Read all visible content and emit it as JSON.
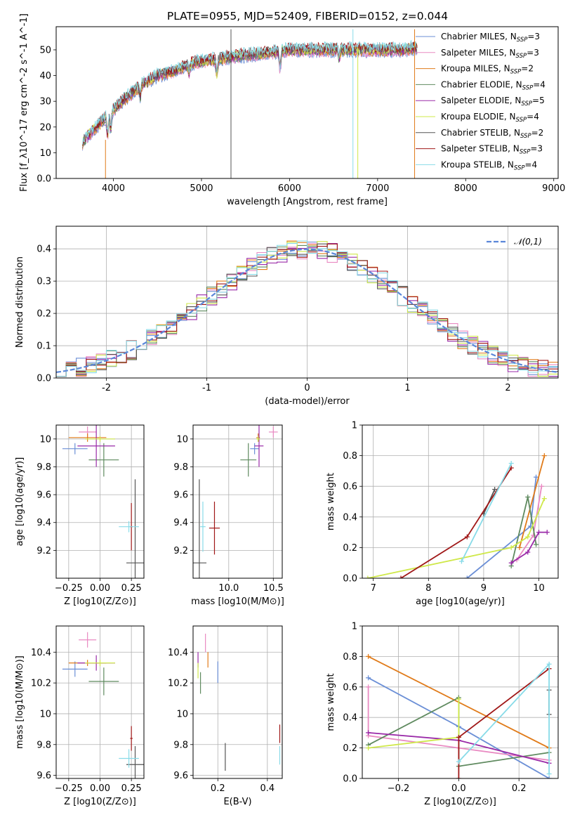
{
  "title": "PLATE=0955, MJD=52409, FIBERID=0152, z=0.044",
  "series_colors": {
    "Chabrier MILES": "#6b8fd6",
    "Salpeter MILES": "#e98ac2",
    "Kroupa MILES": "#e07b1a",
    "Chabrier ELODIE": "#5f8a5f",
    "Salpeter ELODIE": "#9a2aa8",
    "Kroupa ELODIE": "#cfe84a",
    "Chabrier STELIB": "#555555",
    "Salpeter STELIB": "#a01818",
    "Kroupa STELIB": "#88dbe8"
  },
  "chart_data": [
    {
      "type": "line",
      "id": "spectrum",
      "xlabel": "wavelength [Angstrom, rest frame]",
      "ylabel": "Flux [f_λ10^-17 erg cm^-2 s^-1 A^-1]",
      "xlim": [
        3350,
        9050
      ],
      "ylim": [
        0,
        59
      ],
      "xticks": [
        4000,
        5000,
        6000,
        7000,
        8000,
        9000
      ],
      "yticks": [
        0,
        10,
        20,
        30,
        40,
        50
      ],
      "grid": false,
      "legend_position": "top-right",
      "x_range_of_data": [
        3650,
        7450
      ],
      "legend": [
        {
          "name": "Chabrier MILES",
          "nssp": "3"
        },
        {
          "name": "Salpeter MILES",
          "nssp": "3"
        },
        {
          "name": "Kroupa MILES",
          "nssp": "2"
        },
        {
          "name": "Chabrier ELODIE",
          "nssp": "4"
        },
        {
          "name": "Salpeter ELODIE",
          "nssp": "5"
        },
        {
          "name": "Kroupa ELODIE",
          "nssp": "4"
        },
        {
          "name": "Chabrier STELIB",
          "nssp": "2"
        },
        {
          "name": "Salpeter STELIB",
          "nssp": "3"
        },
        {
          "name": "Kroupa STELIB",
          "nssp": "4"
        }
      ],
      "continuum_points": [
        [
          3650,
          14
        ],
        [
          3800,
          20
        ],
        [
          3950,
          25
        ],
        [
          4100,
          30
        ],
        [
          4300,
          36
        ],
        [
          4500,
          40
        ],
        [
          4700,
          42
        ],
        [
          4900,
          45
        ],
        [
          5100,
          46
        ],
        [
          5300,
          47
        ],
        [
          5500,
          48
        ],
        [
          5800,
          49
        ],
        [
          6000,
          50
        ],
        [
          6300,
          50
        ],
        [
          6600,
          50
        ],
        [
          6900,
          50
        ],
        [
          7100,
          50
        ],
        [
          7300,
          50
        ],
        [
          7450,
          51
        ]
      ],
      "absorption_features": [
        [
          3934,
          -8
        ],
        [
          3969,
          -7
        ],
        [
          4304,
          -5
        ],
        [
          4861,
          -3
        ],
        [
          5175,
          -6
        ],
        [
          5893,
          -7
        ],
        [
          6563,
          -3
        ]
      ],
      "emission_features": [
        [
          5335,
          58
        ],
        [
          6720,
          58
        ],
        [
          7420,
          58
        ]
      ]
    },
    {
      "type": "line",
      "id": "residual-histogram",
      "xlabel": "(data-model)/error",
      "ylabel": "Normed distribution",
      "xlim": [
        -2.5,
        2.5
      ],
      "ylim": [
        0,
        0.47
      ],
      "xticks": [
        -2,
        -1,
        0,
        1,
        2
      ],
      "yticks": [
        0.0,
        0.1,
        0.2,
        0.3,
        0.4
      ],
      "grid": true,
      "legend": [
        {
          "name": "𝒩(0,1)",
          "color": "#5b87d9",
          "style": "dashed"
        }
      ],
      "bins": 50,
      "description": "9 step histograms closely following the standard normal density"
    },
    {
      "type": "scatter",
      "id": "age-vs-Z",
      "xlabel": "Z [log10(Z/Z⊙)]",
      "ylabel": "age  [log10(age/yr)]",
      "xlim": [
        -0.35,
        0.35
      ],
      "ylim": [
        9.0,
        10.1
      ],
      "xticks": [
        -0.25,
        0.0,
        0.25
      ],
      "xtick_labels": [
        "−0.25",
        "0.00",
        "0.25"
      ],
      "yticks": [
        9.2,
        9.4,
        9.6,
        9.8,
        10.0
      ],
      "grid": true,
      "points": [
        {
          "series": "Chabrier MILES",
          "x": -0.2,
          "y": 9.93,
          "xerr": 0.1,
          "yerr": 0.04
        },
        {
          "series": "Salpeter MILES",
          "x": -0.1,
          "y": 10.05,
          "xerr": 0.07,
          "yerr": 0.04
        },
        {
          "series": "Kroupa MILES",
          "x": -0.1,
          "y": 10.01,
          "xerr": 0.15,
          "yerr": 0.03
        },
        {
          "series": "Chabrier ELODIE",
          "x": 0.03,
          "y": 9.85,
          "xerr": 0.12,
          "yerr": 0.12
        },
        {
          "series": "Salpeter ELODIE",
          "x": -0.03,
          "y": 9.95,
          "xerr": 0.15,
          "yerr": 0.15
        },
        {
          "series": "Kroupa ELODIE",
          "x": 0.0,
          "y": 10.0,
          "xerr": 0.12,
          "yerr": 0.02
        },
        {
          "series": "Chabrier STELIB",
          "x": 0.28,
          "y": 9.11,
          "xerr": 0.07,
          "yerr": 0.6
        },
        {
          "series": "Salpeter STELIB",
          "x": 0.25,
          "y": 9.37,
          "xerr": 0.01,
          "yerr": 0.17
        },
        {
          "series": "Kroupa STELIB",
          "x": 0.23,
          "y": 9.37,
          "xerr": 0.08,
          "yerr": 0.04
        }
      ]
    },
    {
      "type": "scatter",
      "id": "age-vs-mass",
      "xlabel": "mass [log10(M/M⊙)]",
      "ylabel": "",
      "xlim": [
        9.6,
        10.6
      ],
      "ylim": [
        9.0,
        10.1
      ],
      "xticks": [
        9.5,
        10.0,
        10.5
      ],
      "xtick_labels": [
        "9.5",
        "10.0",
        "10.5"
      ],
      "yticks": [
        9.2,
        9.4,
        9.6,
        9.8,
        10.0
      ],
      "grid": true,
      "points": [
        {
          "series": "Chabrier MILES",
          "x": 10.29,
          "y": 9.93,
          "xerr": 0.05,
          "yerr": 0.04
        },
        {
          "series": "Salpeter MILES",
          "x": 10.5,
          "y": 10.05,
          "xerr": 0.05,
          "yerr": 0.04
        },
        {
          "series": "Kroupa MILES",
          "x": 10.33,
          "y": 10.01,
          "xerr": 0.02,
          "yerr": 0.03
        },
        {
          "series": "Chabrier ELODIE",
          "x": 10.22,
          "y": 9.85,
          "xerr": 0.09,
          "yerr": 0.12
        },
        {
          "series": "Salpeter ELODIE",
          "x": 10.34,
          "y": 9.95,
          "xerr": 0.05,
          "yerr": 0.15
        },
        {
          "series": "Kroupa ELODIE",
          "x": 10.33,
          "y": 10.0,
          "xerr": 0.02,
          "yerr": 0.02
        },
        {
          "series": "Chabrier STELIB",
          "x": 9.67,
          "y": 9.11,
          "xerr": 0.08,
          "yerr": 0.6
        },
        {
          "series": "Salpeter STELIB",
          "x": 9.84,
          "y": 9.36,
          "xerr": 0.06,
          "yerr": 0.19
        },
        {
          "series": "Kroupa STELIB",
          "x": 9.71,
          "y": 9.37,
          "xerr": 0.03,
          "yerr": 0.18
        }
      ]
    },
    {
      "type": "line",
      "id": "mass-weight-vs-age",
      "xlabel": "age  [log10(age/yr)]",
      "ylabel": "mass weight",
      "xlim": [
        6.8,
        10.35
      ],
      "ylim": [
        0,
        1.0
      ],
      "xticks": [
        7,
        8,
        9,
        10
      ],
      "yticks": [
        0.0,
        0.2,
        0.4,
        0.6,
        0.8,
        1.0
      ],
      "grid": true,
      "series": [
        {
          "name": "Chabrier MILES",
          "points": [
            [
              8.7,
              0.0
            ],
            [
              9.85,
              0.34
            ],
            [
              9.95,
              0.66
            ]
          ]
        },
        {
          "name": "Salpeter MILES",
          "points": [
            [
              9.6,
              0.12
            ],
            [
              9.9,
              0.28
            ],
            [
              10.05,
              0.6
            ]
          ]
        },
        {
          "name": "Kroupa MILES",
          "points": [
            [
              9.65,
              0.2
            ],
            [
              10.1,
              0.8
            ]
          ]
        },
        {
          "name": "Chabrier ELODIE",
          "points": [
            [
              9.5,
              0.08
            ],
            [
              9.8,
              0.53
            ],
            [
              9.95,
              0.22
            ]
          ]
        },
        {
          "name": "Salpeter ELODIE",
          "points": [
            [
              9.5,
              0.1
            ],
            [
              9.8,
              0.17
            ],
            [
              10.0,
              0.3
            ],
            [
              10.15,
              0.3
            ]
          ]
        },
        {
          "name": "Kroupa ELODIE",
          "points": [
            [
              6.9,
              0.0
            ],
            [
              9.5,
              0.2
            ],
            [
              9.8,
              0.27
            ],
            [
              10.1,
              0.52
            ]
          ]
        },
        {
          "name": "Chabrier STELIB",
          "points": [
            [
              9.0,
              0.42
            ],
            [
              9.2,
              0.58
            ]
          ]
        },
        {
          "name": "Salpeter STELIB",
          "points": [
            [
              7.5,
              0.0
            ],
            [
              8.7,
              0.27
            ],
            [
              9.5,
              0.72
            ]
          ]
        },
        {
          "name": "Kroupa STELIB",
          "points": [
            [
              8.6,
              0.11
            ],
            [
              9.5,
              0.75
            ]
          ]
        }
      ]
    },
    {
      "type": "scatter",
      "id": "mass-vs-Z",
      "xlabel": "Z [log10(Z/Z⊙)]",
      "ylabel": "mass [log10(M/M⊙)]",
      "xlim": [
        -0.35,
        0.35
      ],
      "ylim": [
        9.58,
        10.57
      ],
      "xticks": [
        -0.25,
        0.0,
        0.25
      ],
      "xtick_labels": [
        "−0.25",
        "0.00",
        "0.25"
      ],
      "yticks": [
        9.6,
        9.8,
        10.0,
        10.2,
        10.4
      ],
      "grid": true,
      "points": [
        {
          "series": "Chabrier MILES",
          "x": -0.2,
          "y": 10.29,
          "xerr": 0.1,
          "yerr": 0.05
        },
        {
          "series": "Salpeter MILES",
          "x": -0.1,
          "y": 10.48,
          "xerr": 0.07,
          "yerr": 0.05
        },
        {
          "series": "Kroupa MILES",
          "x": -0.1,
          "y": 10.33,
          "xerr": 0.15,
          "yerr": 0.02
        },
        {
          "series": "Chabrier ELODIE",
          "x": 0.03,
          "y": 10.21,
          "xerr": 0.12,
          "yerr": 0.09
        },
        {
          "series": "Salpeter ELODIE",
          "x": -0.03,
          "y": 10.33,
          "xerr": 0.15,
          "yerr": 0.05
        },
        {
          "series": "Kroupa ELODIE",
          "x": 0.0,
          "y": 10.33,
          "xerr": 0.12,
          "yerr": 0.02
        },
        {
          "series": "Chabrier STELIB",
          "x": 0.28,
          "y": 9.67,
          "xerr": 0.07,
          "yerr": 0.12
        },
        {
          "series": "Salpeter STELIB",
          "x": 0.25,
          "y": 9.84,
          "xerr": 0.01,
          "yerr": 0.08
        },
        {
          "series": "Kroupa STELIB",
          "x": 0.23,
          "y": 9.71,
          "xerr": 0.08,
          "yerr": 0.06
        }
      ]
    },
    {
      "type": "scatter",
      "id": "mass-vs-ebv",
      "xlabel": "E(B-V)",
      "ylabel": "",
      "xlim": [
        0.1,
        0.46
      ],
      "ylim": [
        9.58,
        10.57
      ],
      "xticks": [
        0.2,
        0.4
      ],
      "xtick_labels": [
        "0.2",
        "0.4"
      ],
      "yticks": [
        9.6,
        9.8,
        10.0,
        10.2,
        10.4
      ],
      "grid": true,
      "points": [
        {
          "series": "Chabrier MILES",
          "x": 0.2,
          "y": 10.27,
          "xerr": 0.0,
          "yerr": 0.07
        },
        {
          "series": "Salpeter MILES",
          "x": 0.15,
          "y": 10.46,
          "xerr": 0.0,
          "yerr": 0.06
        },
        {
          "series": "Kroupa MILES",
          "x": 0.16,
          "y": 10.35,
          "xerr": 0.0,
          "yerr": 0.05
        },
        {
          "series": "Chabrier ELODIE",
          "x": 0.13,
          "y": 10.2,
          "xerr": 0.0,
          "yerr": 0.07
        },
        {
          "series": "Salpeter ELODIE",
          "x": 0.12,
          "y": 10.35,
          "xerr": 0.0,
          "yerr": 0.05
        },
        {
          "series": "Kroupa ELODIE",
          "x": 0.12,
          "y": 10.28,
          "xerr": 0.0,
          "yerr": 0.05
        },
        {
          "series": "Chabrier STELIB",
          "x": 0.23,
          "y": 9.72,
          "xerr": 0.0,
          "yerr": 0.09
        },
        {
          "series": "Salpeter STELIB",
          "x": 0.45,
          "y": 9.87,
          "xerr": 0.0,
          "yerr": 0.06
        },
        {
          "series": "Kroupa STELIB",
          "x": 0.45,
          "y": 9.73,
          "xerr": 0.0,
          "yerr": 0.06
        }
      ]
    },
    {
      "type": "line",
      "id": "mass-weight-vs-Z",
      "xlabel": "Z [log10(Z/Z⊙)]",
      "ylabel": "mass weight",
      "xlim": [
        -0.32,
        0.33
      ],
      "ylim": [
        0,
        1.0
      ],
      "xticks": [
        -0.2,
        0.0,
        0.2
      ],
      "xtick_labels": [
        "−0.2",
        "0.0",
        "0.2"
      ],
      "yticks": [
        0.0,
        0.2,
        0.4,
        0.6,
        0.8,
        1.0
      ],
      "grid": true,
      "series": [
        {
          "name": "Chabrier MILES",
          "points": [
            [
              -0.3,
              0.66
            ],
            [
              0.0,
              0.34
            ],
            [
              0.3,
              0.0
            ]
          ]
        },
        {
          "name": "Salpeter MILES",
          "points": [
            [
              -0.3,
              0.6
            ],
            [
              -0.3,
              0.28
            ],
            [
              0.0,
              0.2
            ],
            [
              0.3,
              0.12
            ]
          ]
        },
        {
          "name": "Kroupa MILES",
          "points": [
            [
              -0.3,
              0.8
            ],
            [
              0.3,
              0.2
            ]
          ]
        },
        {
          "name": "Chabrier ELODIE",
          "points": [
            [
              -0.3,
              0.22
            ],
            [
              0.0,
              0.53
            ],
            [
              0.0,
              0.08
            ],
            [
              0.3,
              0.17
            ]
          ]
        },
        {
          "name": "Salpeter ELODIE",
          "points": [
            [
              -0.3,
              0.3
            ],
            [
              0.0,
              0.25
            ],
            [
              0.3,
              0.1
            ]
          ]
        },
        {
          "name": "Kroupa ELODIE",
          "points": [
            [
              -0.3,
              0.2
            ],
            [
              0.0,
              0.27
            ],
            [
              0.0,
              0.52
            ]
          ]
        },
        {
          "name": "Chabrier STELIB",
          "points": [
            [
              0.3,
              0.58
            ],
            [
              0.3,
              0.42
            ]
          ]
        },
        {
          "name": "Salpeter STELIB",
          "points": [
            [
              0.0,
              0.0
            ],
            [
              0.0,
              0.27
            ],
            [
              0.3,
              0.72
            ]
          ]
        },
        {
          "name": "Kroupa STELIB",
          "points": [
            [
              0.0,
              0.11
            ],
            [
              0.3,
              0.75
            ],
            [
              0.3,
              0.03
            ]
          ]
        }
      ]
    }
  ]
}
